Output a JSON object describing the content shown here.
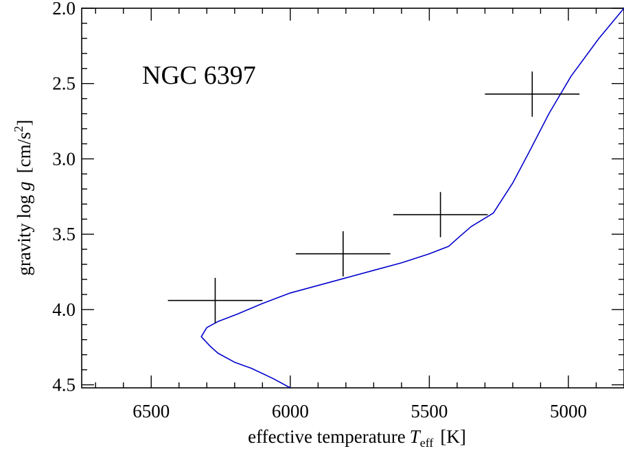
{
  "chart_data": {
    "type": "scatter",
    "annotation": "NGC 6397",
    "xlabel": {
      "text": "effective temperature",
      "symbol": "T",
      "subscript": "eff",
      "unit": "[K]"
    },
    "ylabel": {
      "text": "gravity log",
      "symbol": "g",
      "unit": "[cm/s",
      "unit_superscript": "2",
      "unit_close": "]"
    },
    "xlim": [
      6750,
      4800
    ],
    "ylim": [
      4.52,
      2.0
    ],
    "x_reversed": true,
    "y_reversed": true,
    "x_ticks": [
      6500,
      6000,
      5500,
      5000
    ],
    "x_tick_labels": [
      "6500",
      "6000",
      "5500",
      "5000"
    ],
    "y_ticks": [
      2.0,
      2.5,
      3.0,
      3.5,
      4.0,
      4.5
    ],
    "y_tick_labels": [
      "2.0",
      "2.5",
      "3.0",
      "3.5",
      "4.0",
      "4.5"
    ],
    "x_minor_step": 100,
    "y_minor_step": 0.1,
    "grid": false,
    "colors": {
      "isochrone": "#0000cc",
      "points": "#000000",
      "axes": "#000000"
    },
    "series": [
      {
        "type": "points_with_error_bars",
        "points": [
          {
            "x": 6270,
            "y": 3.94,
            "xerr": 170,
            "yerr": 0.15
          },
          {
            "x": 5810,
            "y": 3.63,
            "xerr": 170,
            "yerr": 0.15
          },
          {
            "x": 5460,
            "y": 3.37,
            "xerr": 170,
            "yerr": 0.15
          },
          {
            "x": 5130,
            "y": 2.57,
            "xerr": 170,
            "yerr": 0.15
          }
        ]
      },
      {
        "type": "line",
        "points": [
          [
            6000,
            4.52
          ],
          [
            6060,
            4.46
          ],
          [
            6140,
            4.39
          ],
          [
            6200,
            4.35
          ],
          [
            6260,
            4.29
          ],
          [
            6290,
            4.24
          ],
          [
            6320,
            4.18
          ],
          [
            6300,
            4.12
          ],
          [
            6260,
            4.08
          ],
          [
            6190,
            4.03
          ],
          [
            6100,
            3.96
          ],
          [
            6000,
            3.89
          ],
          [
            5900,
            3.84
          ],
          [
            5800,
            3.79
          ],
          [
            5700,
            3.74
          ],
          [
            5600,
            3.69
          ],
          [
            5500,
            3.63
          ],
          [
            5430,
            3.58
          ],
          [
            5400,
            3.53
          ],
          [
            5350,
            3.45
          ],
          [
            5270,
            3.36
          ],
          [
            5200,
            3.16
          ],
          [
            5140,
            2.95
          ],
          [
            5070,
            2.7
          ],
          [
            4990,
            2.45
          ],
          [
            4890,
            2.2
          ],
          [
            4800,
            2.0
          ]
        ]
      }
    ]
  }
}
